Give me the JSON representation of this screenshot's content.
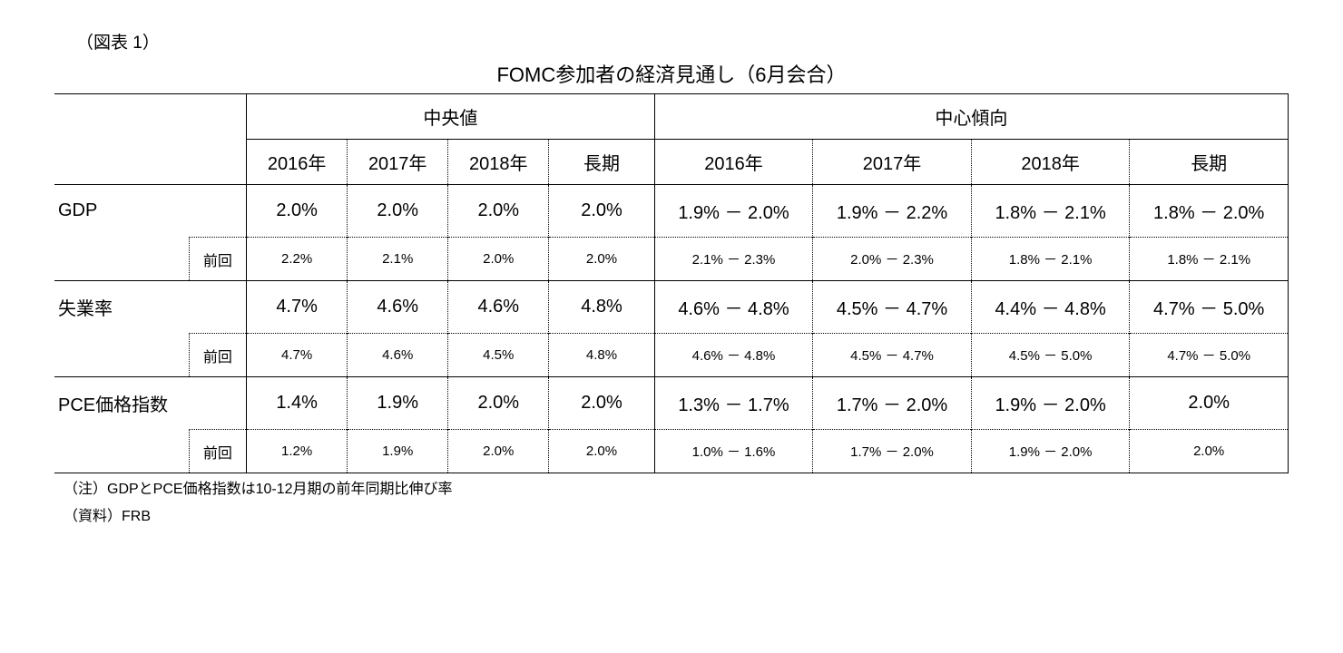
{
  "figure_label": "（図表 1）",
  "title": "FOMC参加者の経済見通し（6月会合）",
  "headers": {
    "median": "中央値",
    "central_tendency": "中心傾向",
    "years": {
      "y2016": "2016年",
      "y2017": "2017年",
      "y2018": "2018年",
      "long": "長期"
    }
  },
  "prev_label": "前回",
  "rows": {
    "gdp": {
      "label": "GDP",
      "median": {
        "y2016": "2.0%",
        "y2017": "2.0%",
        "y2018": "2.0%",
        "long": "2.0%"
      },
      "ct": {
        "y2016": "1.9% － 2.0%",
        "y2017": "1.9% － 2.2%",
        "y2018": "1.8% － 2.1%",
        "long": "1.8% － 2.0%"
      },
      "prev_median": {
        "y2016": "2.2%",
        "y2017": "2.1%",
        "y2018": "2.0%",
        "long": "2.0%"
      },
      "prev_ct": {
        "y2016": "2.1% － 2.3%",
        "y2017": "2.0% － 2.3%",
        "y2018": "1.8% － 2.1%",
        "long": "1.8% － 2.1%"
      }
    },
    "unemp": {
      "label": "失業率",
      "median": {
        "y2016": "4.7%",
        "y2017": "4.6%",
        "y2018": "4.6%",
        "long": "4.8%"
      },
      "ct": {
        "y2016": "4.6% － 4.8%",
        "y2017": "4.5% － 4.7%",
        "y2018": "4.4% － 4.8%",
        "long": "4.7% － 5.0%"
      },
      "prev_median": {
        "y2016": "4.7%",
        "y2017": "4.6%",
        "y2018": "4.5%",
        "long": "4.8%"
      },
      "prev_ct": {
        "y2016": "4.6% － 4.8%",
        "y2017": "4.5% － 4.7%",
        "y2018": "4.5% － 5.0%",
        "long": "4.7% － 5.0%"
      }
    },
    "pce": {
      "label": "PCE価格指数",
      "median": {
        "y2016": "1.4%",
        "y2017": "1.9%",
        "y2018": "2.0%",
        "long": "2.0%"
      },
      "ct": {
        "y2016": "1.3% － 1.7%",
        "y2017": "1.7% － 2.0%",
        "y2018": "1.9% － 2.0%",
        "long": "2.0%"
      },
      "prev_median": {
        "y2016": "1.2%",
        "y2017": "1.9%",
        "y2018": "2.0%",
        "long": "2.0%"
      },
      "prev_ct": {
        "y2016": "1.0% － 1.6%",
        "y2017": "1.7% － 2.0%",
        "y2018": "1.9% － 2.0%",
        "long": "2.0%"
      }
    }
  },
  "notes": {
    "n1": "（注）GDPとPCE価格指数は10-12月期の前年同期比伸び率",
    "n2": "（資料）FRB"
  },
  "style": {
    "table_border_color": "#000000",
    "background_color": "#ffffff",
    "main_fontsize": 20,
    "prev_fontsize": 15,
    "title_fontsize": 22,
    "note_fontsize": 16
  }
}
